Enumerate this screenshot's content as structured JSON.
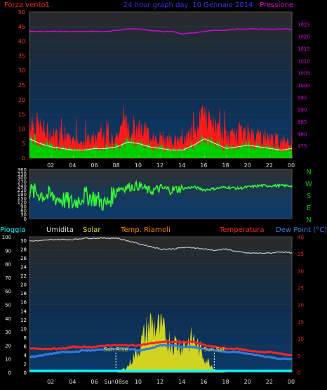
{
  "top": {
    "left_label": "Forza vento1",
    "title": "24 hour graph day: 10 Gennaio 2014",
    "right_label": "Pressione"
  },
  "legend": {
    "pioggia": "Pioggia",
    "umidita": "Umidita",
    "solar": "Solar",
    "temp_riarnoli": "Temp. Riarnoli",
    "temperatura": "Temperatura",
    "dew_point": "Dew Point (°C)"
  },
  "compass": [
    "N",
    "W",
    "S",
    "E",
    "N"
  ],
  "sun": {
    "rise": "Sun Rise",
    "set": "Sun Set",
    "rise_hour": 7.9,
    "set_hour": 16.9
  },
  "bottom_tick_special": "Sun08se",
  "colors": {
    "wind": "#ff1a1a",
    "gust_green": "#00cc00",
    "avg_white": "#ffffff",
    "pressure": "#e600e6",
    "direction": "#33ff33",
    "humidity": "#c8c8c8",
    "temperature": "#ff2222",
    "dew": "#2e7de0",
    "solar": "#e6e61a",
    "rain": "#00ffff",
    "title": "#3333ff",
    "compass": "#00cc00"
  },
  "chart_data": [
    {
      "type": "area",
      "name": "wind_pressure",
      "x_ticks": [
        "02",
        "04",
        "06",
        "08",
        "10",
        "12",
        "14",
        "16",
        "18",
        "20",
        "22",
        "00"
      ],
      "ylim_left": [
        0,
        50
      ],
      "yticks_left": [
        0,
        5,
        10,
        15,
        20,
        25,
        30,
        35,
        40,
        45,
        50
      ],
      "ylim_right": [
        970,
        1030
      ],
      "yticks_right": [
        975,
        980,
        985,
        990,
        995,
        1000,
        1005,
        1010,
        1015,
        1020,
        1025
      ],
      "hours": [
        0,
        1,
        2,
        3,
        4,
        5,
        6,
        7,
        8,
        9,
        10,
        11,
        12,
        13,
        14,
        15,
        16,
        17,
        18,
        19,
        20,
        21,
        22,
        23,
        24
      ],
      "series": [
        {
          "name": "Forza vento1",
          "values": [
            12,
            9,
            7,
            6,
            5,
            5,
            6,
            6,
            7,
            10,
            9,
            7,
            6,
            5,
            5,
            8,
            12,
            9,
            6,
            7,
            8,
            7,
            6,
            5,
            6
          ]
        },
        {
          "name": "Pressione",
          "values": [
            1022,
            1022,
            1022,
            1022,
            1022,
            1022,
            1022,
            1022,
            1022.5,
            1023,
            1023,
            1022.5,
            1022,
            1022,
            1021,
            1021.5,
            1022,
            1022.5,
            1022.5,
            1023,
            1023,
            1023,
            1023,
            1023,
            1023
          ]
        }
      ]
    },
    {
      "type": "line",
      "name": "wind_direction",
      "ylim": [
        0,
        360
      ],
      "yticks": [
        0,
        30,
        60,
        90,
        120,
        150,
        180,
        210,
        240,
        270,
        300,
        330,
        360
      ],
      "hours": [
        0,
        1,
        2,
        3,
        4,
        5,
        6,
        7,
        8,
        9,
        10,
        11,
        12,
        13,
        14,
        15,
        16,
        17,
        18,
        19,
        20,
        21,
        22,
        23,
        24
      ],
      "values": [
        200,
        180,
        160,
        140,
        110,
        170,
        150,
        100,
        220,
        230,
        240,
        200,
        220,
        210,
        220,
        230,
        210,
        220,
        230,
        220,
        230,
        240,
        240,
        240,
        240
      ]
    },
    {
      "type": "line",
      "name": "temp_humidity_solar",
      "ylim_left": [
        0,
        100
      ],
      "yticks_left": [
        0,
        10,
        20,
        30,
        40,
        50,
        60,
        70,
        80,
        90,
        100
      ],
      "ylim_right": [
        0,
        40
      ],
      "yticks_right": [
        0,
        5,
        10,
        15,
        20,
        25,
        30,
        35,
        40
      ],
      "inner_ticks": [
        0,
        2,
        4,
        6,
        8,
        10,
        12,
        14,
        16,
        18,
        20,
        22,
        24,
        26,
        28,
        30
      ],
      "hours": [
        0,
        1,
        2,
        3,
        4,
        5,
        6,
        7,
        8,
        9,
        10,
        11,
        12,
        13,
        14,
        15,
        16,
        17,
        18,
        19,
        20,
        21,
        22,
        23,
        24
      ],
      "series": [
        {
          "name": "Umidita",
          "values": [
            97,
            97,
            98,
            98,
            98,
            99,
            99,
            99,
            99,
            97,
            95,
            93,
            91,
            91,
            92,
            92,
            91,
            90,
            91,
            89,
            88,
            88,
            88,
            89,
            88
          ]
        },
        {
          "name": "Temperatura",
          "values": [
            7,
            7,
            7,
            7,
            7.5,
            7.5,
            7.5,
            8,
            8,
            8,
            8,
            8.5,
            9,
            9,
            9,
            9,
            8,
            7.5,
            7,
            7,
            6.5,
            6,
            6,
            5.5,
            5
          ]
        },
        {
          "name": "Dew Point",
          "values": [
            4.5,
            5,
            5.5,
            6,
            6,
            6.5,
            6.5,
            7,
            7,
            7,
            6.5,
            7,
            8,
            8,
            7.5,
            7.5,
            7,
            6.5,
            6,
            6,
            5.5,
            5,
            4.5,
            4,
            4
          ]
        },
        {
          "name": "Solar",
          "values": [
            0,
            0,
            0,
            0,
            0,
            0,
            0,
            0,
            0,
            2,
            8,
            16,
            14,
            10,
            9,
            11,
            5,
            1,
            0,
            0,
            0,
            0,
            0,
            0,
            0
          ]
        },
        {
          "name": "Pioggia",
          "values": [
            0,
            0,
            0,
            0,
            0,
            0,
            0,
            0,
            0,
            0,
            0,
            0,
            0,
            0,
            0,
            0,
            0,
            0,
            0,
            0,
            0,
            0,
            0,
            0,
            0
          ]
        }
      ]
    }
  ]
}
